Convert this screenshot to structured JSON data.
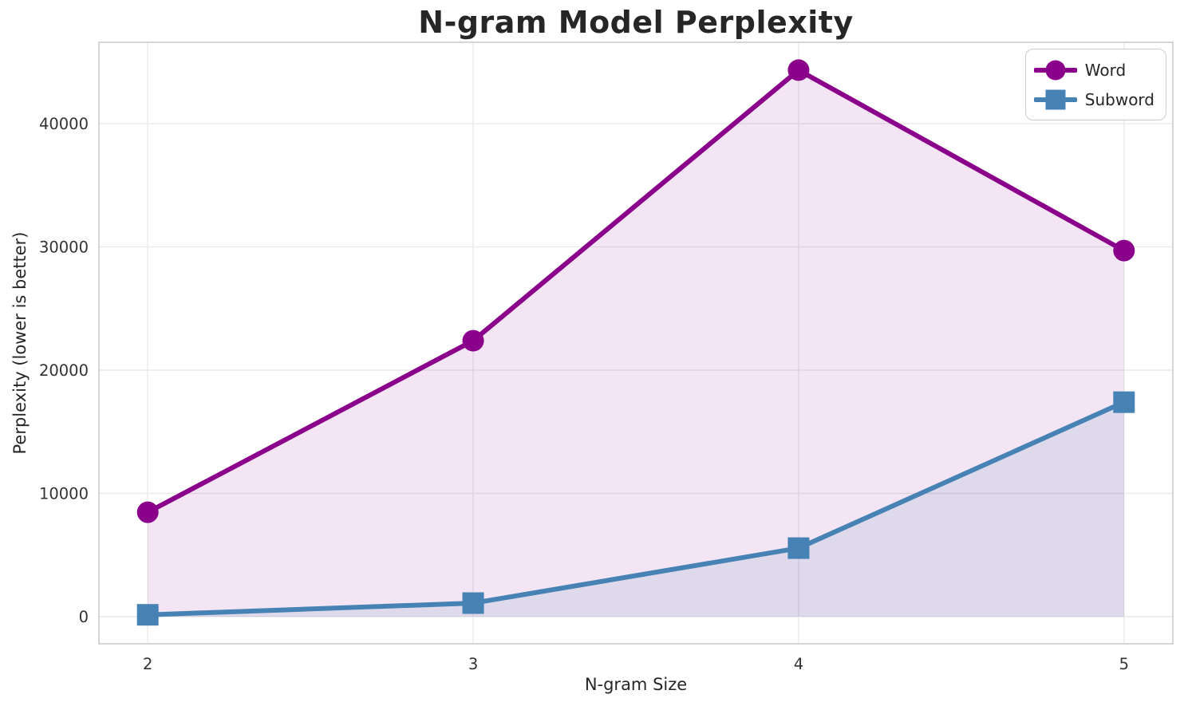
{
  "chart_data": {
    "type": "line",
    "title": "N-gram Model Perplexity",
    "xlabel": "N-gram Size",
    "ylabel": "Perplexity (lower is better)",
    "x": [
      2,
      3,
      4,
      5
    ],
    "series": [
      {
        "name": "Word",
        "values": [
          8470,
          22390,
          44340,
          29700
        ],
        "color": "#8B008B",
        "marker": "circle",
        "fill_alpha": 0.1
      },
      {
        "name": "Subword",
        "values": [
          150,
          1100,
          5560,
          17400
        ],
        "color": "#4682B4",
        "marker": "square",
        "fill_alpha": 0.12
      }
    ],
    "xlim": [
      1.85,
      5.15
    ],
    "ylim": [
      -2200,
      46600
    ],
    "xticks": [
      2,
      3,
      4,
      5
    ],
    "yticks": [
      0,
      10000,
      20000,
      30000,
      40000
    ],
    "grid": true,
    "area_fill_to_zero": true,
    "legend_position": "top-right"
  },
  "styles": {
    "background_color": "#ffffff",
    "grid_color": "#e9e9e9",
    "spine_color": "#c8c8c8",
    "text_color": "#262626",
    "tick_label_color": "#333333"
  }
}
